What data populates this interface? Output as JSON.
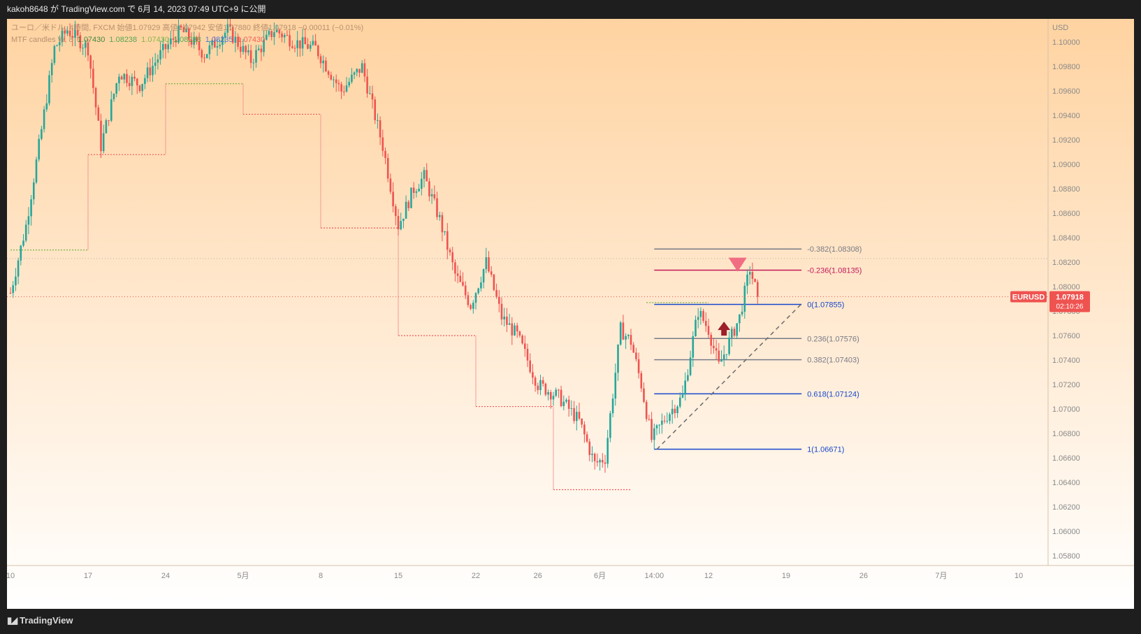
{
  "header": {
    "publish_text": "kakoh8648 が TradingView.com で 6月 14, 2023 07:49 UTC+9 に公開"
  },
  "footer": {
    "brand": "TradingView",
    "logo_icon": "tradingview-logo-icon"
  },
  "legend": {
    "line1": "ユーロ／米ドル, 4時間, FXCM 始値1.07929 高値1.07942 安値1.07880 終値1.07918 −0.00011 (−0.01%)",
    "line2_label": "MTF candles W, 8",
    "line2_values": [
      "1.07430",
      "1.08238",
      "1.07430",
      "1.08238",
      "1.08235",
      "1.07430"
    ]
  },
  "chart_data": {
    "type": "candlestick",
    "symbol": "EURUSD",
    "currency": "USD",
    "last_price": "1.07918",
    "countdown": "02:10:26",
    "ylim": [
      1.0572,
      1.1019
    ],
    "y_ticks": [
      "1.10000",
      "1.09800",
      "1.09600",
      "1.09400",
      "1.09200",
      "1.09000",
      "1.08800",
      "1.08600",
      "1.08400",
      "1.08200",
      "1.08000",
      "1.07800",
      "1.07600",
      "1.07400",
      "1.07200",
      "1.07000",
      "1.06800",
      "1.06600",
      "1.06400",
      "1.06200",
      "1.06000",
      "1.05800"
    ],
    "x_ticks": [
      {
        "label": "10",
        "bar": 0
      },
      {
        "label": "17",
        "bar": 30
      },
      {
        "label": "24",
        "bar": 60
      },
      {
        "label": "5月",
        "bar": 90
      },
      {
        "label": "8",
        "bar": 120
      },
      {
        "label": "15",
        "bar": 150
      },
      {
        "label": "22",
        "bar": 180
      },
      {
        "label": "26",
        "bar": 204
      },
      {
        "label": "6月",
        "bar": 228
      },
      {
        "label": "14:00",
        "bar": 249
      },
      {
        "label": "12",
        "bar": 270
      },
      {
        "label": "19",
        "bar": 300
      },
      {
        "label": "26",
        "bar": 330
      },
      {
        "label": "7月",
        "bar": 360
      },
      {
        "label": "10",
        "bar": 390
      }
    ],
    "anchors": [
      [
        0,
        1.0795
      ],
      [
        6,
        1.085
      ],
      [
        11,
        1.0915
      ],
      [
        17,
        1.0995
      ],
      [
        22,
        1.101
      ],
      [
        30,
        1.0995
      ],
      [
        35,
        1.0915
      ],
      [
        42,
        1.0975
      ],
      [
        50,
        1.0965
      ],
      [
        58,
        1.099
      ],
      [
        66,
        1.101
      ],
      [
        75,
        1.099
      ],
      [
        84,
        1.101
      ],
      [
        93,
        1.0985
      ],
      [
        102,
        1.101
      ],
      [
        110,
        1.1
      ],
      [
        118,
        1.0995
      ],
      [
        128,
        1.096
      ],
      [
        136,
        1.098
      ],
      [
        144,
        1.0915
      ],
      [
        150,
        1.085
      ],
      [
        156,
        1.088
      ],
      [
        160,
        1.089
      ],
      [
        166,
        1.0855
      ],
      [
        172,
        1.081
      ],
      [
        178,
        1.0785
      ],
      [
        184,
        1.082
      ],
      [
        190,
        1.0775
      ],
      [
        196,
        1.076
      ],
      [
        204,
        1.072
      ],
      [
        212,
        1.071
      ],
      [
        220,
        1.069
      ],
      [
        226,
        1.0655
      ],
      [
        230,
        1.066
      ],
      [
        236,
        1.0765
      ],
      [
        240,
        1.0755
      ],
      [
        244,
        1.072
      ],
      [
        248,
        1.0675
      ],
      [
        254,
        1.0695
      ],
      [
        260,
        1.071
      ],
      [
        266,
        1.078
      ],
      [
        270,
        1.0765
      ],
      [
        274,
        1.0735
      ],
      [
        278,
        1.0755
      ],
      [
        282,
        1.0775
      ],
      [
        286,
        1.0815
      ],
      [
        289,
        1.0792
      ]
    ],
    "mtf_weekly_green": [
      {
        "b0": 0,
        "b1": 30,
        "price": 1.083
      },
      {
        "b0": 60,
        "b1": 90,
        "price": 1.0966
      },
      {
        "b0": 246,
        "b1": 270,
        "price": 1.0787
      }
    ],
    "mtf_weekly_red": [
      {
        "b0": 30,
        "b1": 60,
        "price": 1.0908
      },
      {
        "b0": 90,
        "b1": 120,
        "price": 1.0941
      },
      {
        "b0": 120,
        "b1": 150,
        "price": 1.0848
      },
      {
        "b0": 150,
        "b1": 180,
        "price": 1.076
      },
      {
        "b0": 180,
        "b1": 210,
        "price": 1.0702
      },
      {
        "b0": 210,
        "b1": 240,
        "price": 1.0634
      }
    ],
    "fib_levels": [
      {
        "label": "-0.382(1.08308)",
        "price": 1.08308,
        "color": "#787b86"
      },
      {
        "label": "-0.236(1.08135)",
        "price": 1.08135,
        "color": "#c2185b"
      },
      {
        "label": "0(1.07855)",
        "price": 1.07855,
        "color": "#1848cc"
      },
      {
        "label": "0.236(1.07576)",
        "price": 1.07576,
        "color": "#787b86"
      },
      {
        "label": "0.382(1.07403)",
        "price": 1.07403,
        "color": "#787b86"
      },
      {
        "label": "0.618(1.07124)",
        "price": 1.07124,
        "color": "#1848cc"
      },
      {
        "label": "1(1.06671)",
        "price": 1.06671,
        "color": "#1848cc"
      }
    ],
    "fib_range_bars": [
      249,
      306
    ],
    "trendline": {
      "from": [
        250,
        1.0667
      ],
      "to": [
        306,
        1.0786
      ]
    },
    "markers": {
      "sell_arrow": {
        "bar": 281,
        "price": 1.0818
      },
      "buy_arrow": {
        "bar": 276,
        "price": 1.0768
      }
    }
  }
}
